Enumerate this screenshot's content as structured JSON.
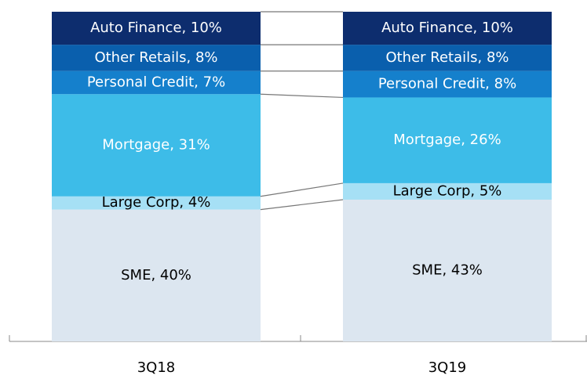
{
  "chart_data": {
    "type": "stacked_bar",
    "categories": [
      "3Q18",
      "3Q19"
    ],
    "ylim": [
      0,
      100
    ],
    "series": [
      {
        "color": "#dce6f0",
        "label_color": "#000000",
        "values": [
          40,
          43
        ],
        "value_labels": [
          "SME, 40%",
          "SME, 43%"
        ]
      },
      {
        "color": "#a6e0f5",
        "label_color": "#000000",
        "values": [
          4,
          5
        ],
        "value_labels": [
          "Large Corp, 4%",
          "Large Corp, 5%"
        ]
      },
      {
        "color": "#3dbce8",
        "label_color": "#ffffff",
        "values": [
          31,
          26
        ],
        "value_labels": [
          "Mortgage, 31%",
          "Mortgage, 26%"
        ]
      },
      {
        "color": "#1580cc",
        "label_color": "#ffffff",
        "values": [
          7,
          8
        ],
        "value_labels": [
          "Personal Credit, 7%",
          "Personal Credit, 8%"
        ]
      },
      {
        "color": "#0a5fad",
        "label_color": "#ffffff",
        "values": [
          8,
          8
        ],
        "value_labels": [
          "Other Retails, 8%",
          "Other Retails, 8%"
        ]
      },
      {
        "color": "#0d2d6e",
        "label_color": "#ffffff",
        "values": [
          10,
          10
        ],
        "value_labels": [
          "Auto Finance, 10%",
          "Auto Finance, 10%"
        ]
      }
    ]
  }
}
